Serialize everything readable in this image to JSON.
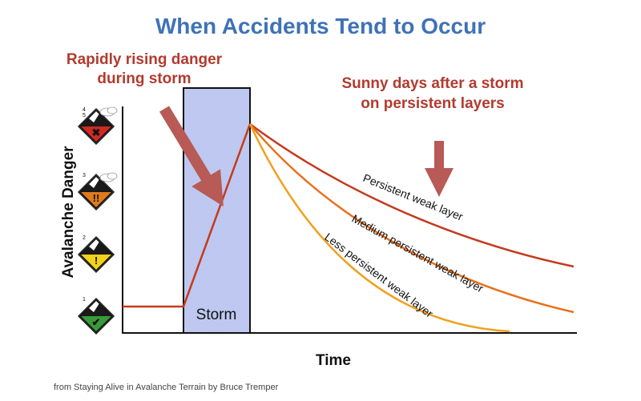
{
  "chart_data": {
    "type": "line",
    "title": "When Accidents Tend to Occur",
    "xlabel": "Time",
    "ylabel": "Avalanche Danger",
    "source": "from Staying Alive in Avalanche Terrain by Bruce Tremper",
    "y_levels": [
      {
        "level": 1,
        "icon": "low-danger-check-icon",
        "color": "#3a9a3a"
      },
      {
        "level": 2,
        "icon": "moderate-danger-exclamation-icon",
        "color": "#f2d21a"
      },
      {
        "level": 3,
        "icon": "considerable-danger-double-exclamation-icon",
        "color": "#e07a1c"
      },
      {
        "level": "4 5",
        "icon": "high-danger-x-icon",
        "color": "#d02a22"
      }
    ],
    "storm_label": "Storm",
    "annotations": [
      {
        "id": "rising",
        "lines": [
          "Rapidly rising danger",
          "during storm"
        ],
        "color": "#b23a2e"
      },
      {
        "id": "sunny",
        "lines": [
          "Sunny days after a storm",
          "on persistent layers"
        ],
        "color": "#b23a2e"
      }
    ],
    "series": [
      {
        "name": "Persistent weak layer",
        "color": "#c43a1e"
      },
      {
        "name": "Medium persistent weak layer",
        "color": "#e8701a"
      },
      {
        "name": "Less persistent weak layer",
        "color": "#f0a01e"
      }
    ]
  }
}
